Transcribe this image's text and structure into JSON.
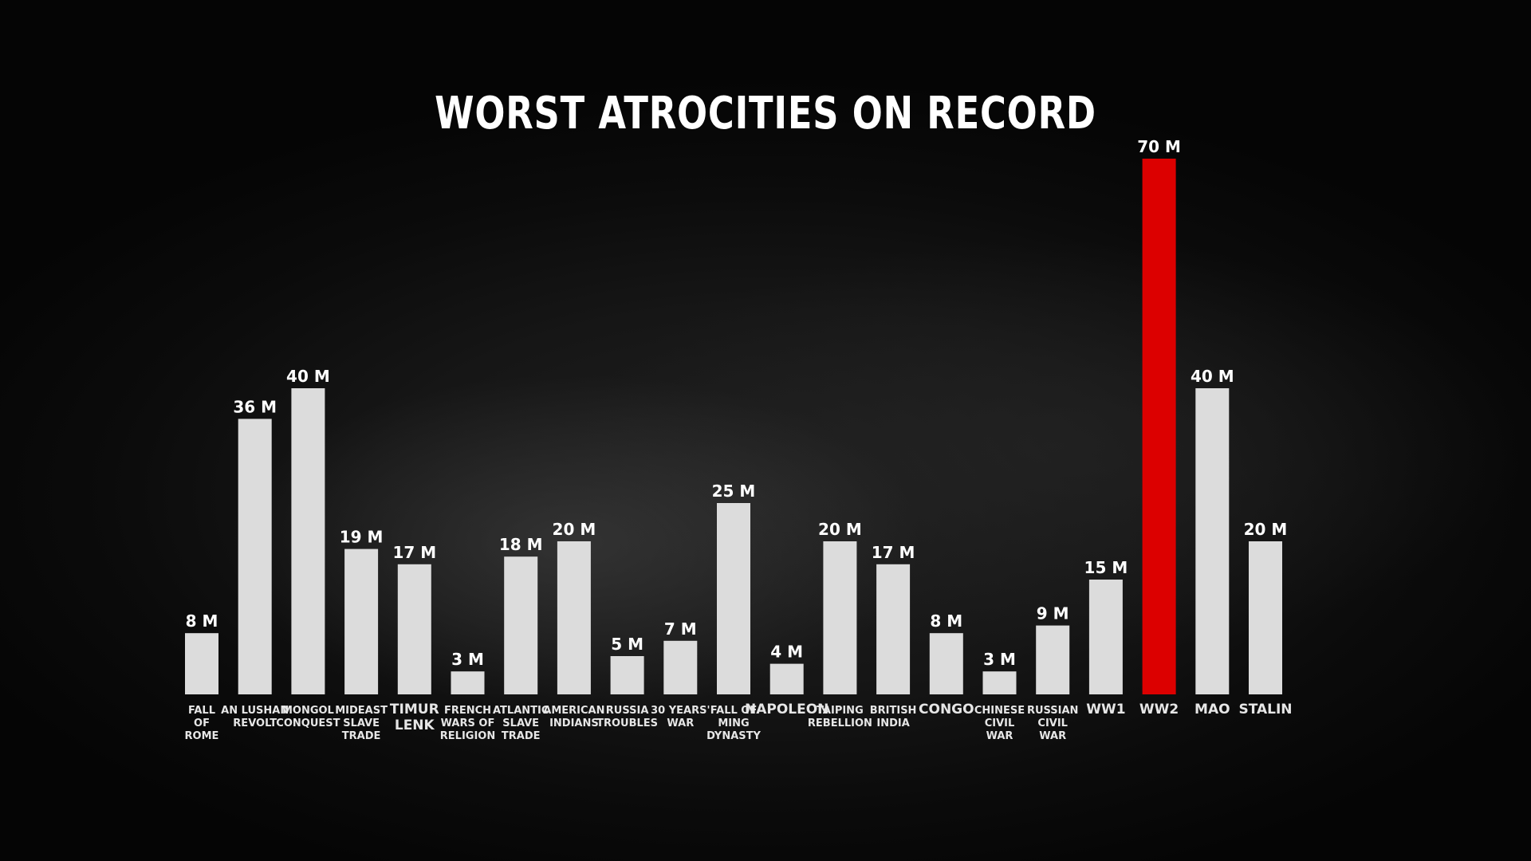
{
  "colors": {
    "bar": "#dcdcdc",
    "highlight": "#dc0000",
    "text": "#ffffff",
    "category_text": "#e6e6e6"
  },
  "chart_data": {
    "type": "bar",
    "title": "WORST ATROCITIES ON RECORD",
    "xlabel": "",
    "ylabel": "",
    "ylim": [
      0,
      70
    ],
    "grid": false,
    "legend": "none",
    "highlight_category": "WW2",
    "categories": [
      "FALL OF ROME",
      "AN LUSHAN REVOLT",
      "MONGOL CONQUEST",
      "MIDEAST SLAVE TRADE",
      "TIMUR LENK",
      "FRENCH WARS OF RELIGION",
      "ATLANTIC SLAVE TRADE",
      "AMERICAN INDIANS",
      "RUSSIA TROUBLES",
      "30 YEARS' WAR",
      "FALL OF MING DYNASTY",
      "NAPOLEON",
      "TAIPING REBELLION",
      "BRITISH INDIA",
      "CONGO",
      "CHINESE CIVIL WAR",
      "RUSSIAN CIVIL WAR",
      "WW1",
      "WW2",
      "MAO",
      "STALIN"
    ],
    "category_lines": [
      [
        "FALL",
        "OF",
        "ROME"
      ],
      [
        "AN LUSHAN",
        "REVOLT"
      ],
      [
        "MONGOL",
        "CONQUEST"
      ],
      [
        "MIDEAST",
        "SLAVE",
        "TRADE"
      ],
      [
        "TIMUR",
        "LENK"
      ],
      [
        "FRENCH",
        "WARS OF",
        "RELIGION"
      ],
      [
        "ATLANTIC",
        "SLAVE",
        "TRADE"
      ],
      [
        "AMERICAN",
        "INDIANS"
      ],
      [
        "RUSSIA",
        "TROUBLES"
      ],
      [
        "30 YEARS'",
        "WAR"
      ],
      [
        "FALL OF",
        "MING",
        "DYNASTY"
      ],
      [
        "NAPOLEON"
      ],
      [
        "TAIPING",
        "REBELLION"
      ],
      [
        "BRITISH",
        "INDIA"
      ],
      [
        "CONGO"
      ],
      [
        "CHINESE",
        "CIVIL",
        "WAR"
      ],
      [
        "RUSSIAN",
        "CIVIL",
        "WAR"
      ],
      [
        "WW1"
      ],
      [
        "WW2"
      ],
      [
        "MAO"
      ],
      [
        "STALIN"
      ]
    ],
    "values": [
      8,
      36,
      40,
      19,
      17,
      3,
      18,
      20,
      5,
      7,
      25,
      4,
      20,
      17,
      8,
      3,
      9,
      15,
      70,
      40,
      20
    ],
    "value_labels": [
      "8 M",
      "36 M",
      "40 M",
      "19 M",
      "17 M",
      "3 M",
      "18 M",
      "20 M",
      "5 M",
      "7 M",
      "25 M",
      "4 M",
      "20 M",
      "17 M",
      "8 M",
      "3 M",
      "9 M",
      "15 M",
      "70 M",
      "40 M",
      "20 M"
    ],
    "unit": "M"
  }
}
